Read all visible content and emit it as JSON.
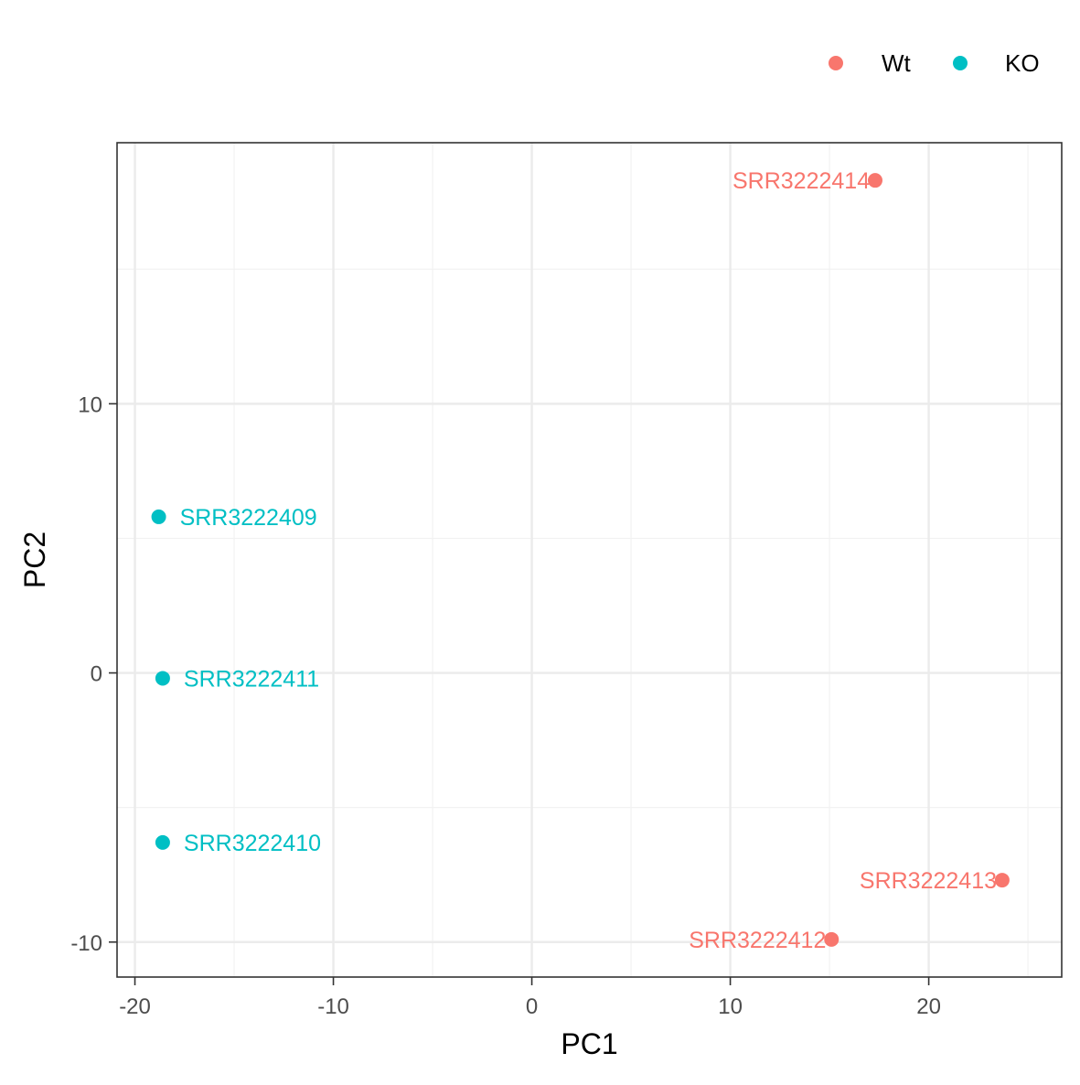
{
  "colors": {
    "Wt": "#F8766D",
    "KO": "#00BFC4",
    "panel_border": "#333333",
    "grid_major": "#EBEBEB",
    "grid_minor": "#F2F2F2",
    "tick_text": "#4D4D4D"
  },
  "legend": {
    "placement": "top-right",
    "items": [
      {
        "label": "Wt",
        "color_key": "Wt"
      },
      {
        "label": "KO",
        "color_key": "KO"
      }
    ]
  },
  "chart_data": {
    "type": "scatter",
    "title": "",
    "xlabel": "PC1",
    "ylabel": "PC2",
    "xlim": [
      -20.9,
      26.7
    ],
    "ylim": [
      -11.3,
      19.7
    ],
    "grid": true,
    "x_ticks": [
      -20,
      -10,
      0,
      10,
      20
    ],
    "x_tick_labels": [
      "-20",
      "-10",
      "0",
      "10",
      "20"
    ],
    "x_minor_ticks": [
      -15,
      -5,
      5,
      15,
      25
    ],
    "y_ticks": [
      -10,
      0,
      10
    ],
    "y_tick_labels": [
      "-10",
      "0",
      "10"
    ],
    "y_minor_ticks": [
      -5,
      5,
      15
    ],
    "series": [
      {
        "name": "Wt",
        "points": [
          {
            "x": 17.3,
            "y": 18.3,
            "label": "SRR3222414"
          },
          {
            "x": 23.7,
            "y": -7.7,
            "label": "SRR3222413"
          },
          {
            "x": 15.1,
            "y": -9.9,
            "label": "SRR3222412"
          }
        ]
      },
      {
        "name": "KO",
        "points": [
          {
            "x": -18.8,
            "y": 5.8,
            "label": "SRR3222409"
          },
          {
            "x": -18.6,
            "y": -0.2,
            "label": "SRR3222411"
          },
          {
            "x": -18.6,
            "y": -6.3,
            "label": "SRR3222410"
          }
        ]
      }
    ]
  }
}
